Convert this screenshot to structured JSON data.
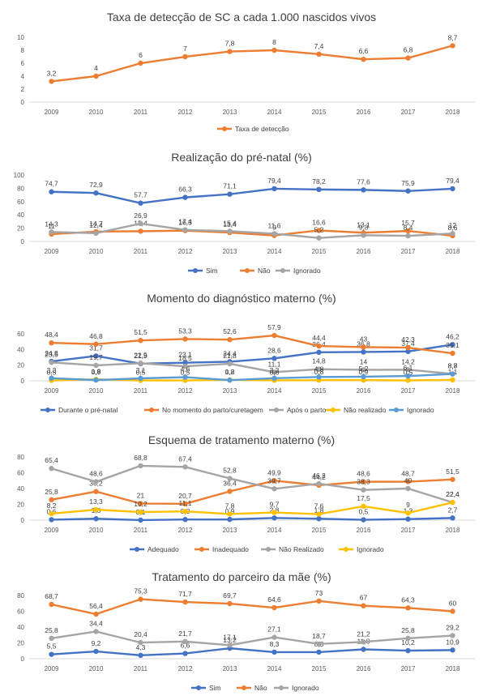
{
  "chart_data": [
    {
      "type": "line",
      "title": "Taxa de detecção de SC a cada 1.000 nascidos vivos",
      "categories": [
        "2009",
        "2010",
        "2011",
        "2012",
        "2013",
        "2014",
        "2015",
        "2016",
        "2017",
        "2018"
      ],
      "ylim": [
        0,
        10
      ],
      "yticks": [
        0,
        2,
        4,
        6,
        8,
        10
      ],
      "grid": false,
      "legend": "bottom",
      "series": [
        {
          "name": "Taxa de detecção",
          "color": "#ED7D31",
          "values": [
            3.2,
            4,
            6,
            7,
            7.8,
            8,
            7.4,
            6.6,
            6.8,
            8.7
          ],
          "labels": [
            "3,2",
            "4",
            "6",
            "7",
            "7,8",
            "8",
            "7,4",
            "6,6",
            "6,8",
            "8,7"
          ]
        }
      ]
    },
    {
      "type": "line",
      "title": "Realização do pré-natal (%)",
      "categories": [
        "2009",
        "2010",
        "2011",
        "2012",
        "2013",
        "2014",
        "2015",
        "2016",
        "2017",
        "2018"
      ],
      "ylim": [
        0,
        100
      ],
      "yticks": [
        0,
        20,
        40,
        60,
        80,
        100
      ],
      "grid": false,
      "legend": "bottom",
      "series": [
        {
          "name": "Sim",
          "color": "#4472C4",
          "values": [
            74.7,
            72.9,
            57.7,
            66.3,
            71.1,
            79.4,
            78.2,
            77.6,
            75.9,
            79.4
          ],
          "labels": [
            "74,7",
            "72,9",
            "57,7",
            "66,3",
            "71,1",
            "79,4",
            "78,2",
            "77,6",
            "75,9",
            "79,4"
          ]
        },
        {
          "name": "Não",
          "color": "#ED7D31",
          "values": [
            11,
            14.7,
            15.4,
            16.3,
            13.4,
            9,
            16.6,
            13.1,
            15.7,
            8.6
          ],
          "labels": [
            "11",
            "14,7",
            "15,4",
            "16,3",
            "13,4",
            "9",
            "16,6",
            "13,1",
            "15,7",
            "8,6"
          ]
        },
        {
          "name": "Ignorado",
          "color": "#A5A5A5",
          "values": [
            14.3,
            12.4,
            26.9,
            17.4,
            15.4,
            11.6,
            5.2,
            9.3,
            8.4,
            12
          ],
          "labels": [
            "14,3",
            "12,4",
            "26,9",
            "17,4",
            "15,4",
            "11,6",
            "5,2",
            "9,3",
            "8,4",
            "12"
          ]
        }
      ]
    },
    {
      "type": "line",
      "title": "Momento do diagnóstico materno (%)",
      "categories": [
        "2009",
        "2010",
        "2011",
        "2012",
        "2013",
        "2014",
        "2015",
        "2016",
        "2017",
        "2018"
      ],
      "ylim": [
        0,
        60
      ],
      "yticks": [
        0,
        20,
        40,
        60
      ],
      "grid": false,
      "legend": "bottom",
      "series": [
        {
          "name": "Durante o pré-natal",
          "color": "#4472C4",
          "values": [
            24.8,
            31.7,
            21.9,
            23.1,
            24.4,
            28.6,
            36.4,
            36.8,
            37.4,
            46.2
          ],
          "labels": [
            "24,8",
            "31,7",
            "21,9",
            "23,1",
            "24,4",
            "28,6",
            "36,4",
            "36,8",
            "37,4",
            "46,2"
          ]
        },
        {
          "name": "No momento do parto/curetagem",
          "color": "#ED7D31",
          "values": [
            48.4,
            46.8,
            51.5,
            53.3,
            52.6,
            57.9,
            44.4,
            43,
            42.3,
            35.1
          ],
          "labels": [
            "48,4",
            "46,8",
            "51,5",
            "53,3",
            "52,6",
            "57,9",
            "44,4",
            "43",
            "42,3",
            "35,1"
          ]
        },
        {
          "name": "Após o parto",
          "color": "#A5A5A5",
          "values": [
            23.5,
            19.7,
            22.5,
            18.5,
            21.8,
            11.1,
            14.8,
            14,
            14.2,
            8.8
          ],
          "labels": [
            "23,5",
            "19,7",
            "22,5",
            "18,5",
            "21,8",
            "11,1",
            "14,8",
            "14",
            "14,2",
            "8,8"
          ]
        },
        {
          "name": "Não realizado",
          "color": "#FFC000",
          "values": [
            0.5,
            1.8,
            0.5,
            0.5,
            1.2,
            0.6,
            0.8,
            0.9,
            0.5,
            1.1
          ],
          "labels": [
            "0,5",
            "1,8",
            "0,5",
            "0,5",
            "1,2",
            "0,6",
            "0,8",
            "0,9",
            "0,5",
            "1,1"
          ]
        },
        {
          "name": "Ignorado",
          "color": "#5B9BD5",
          "values": [
            3.3,
            0.9,
            3.1,
            4.6,
            0.8,
            3.3,
            4.8,
            5.2,
            6.1,
            8.7
          ],
          "labels": [
            "3,3",
            "0,9",
            "3,1",
            "4,6",
            "0,8",
            "3,3",
            "4,8",
            "5,2",
            "6,1",
            "8,7"
          ]
        }
      ]
    },
    {
      "type": "line",
      "title": "Esquema de tratamento materno (%)",
      "categories": [
        "2009",
        "2010",
        "2011",
        "2012",
        "2013",
        "2014",
        "2015",
        "2016",
        "2017",
        "2018"
      ],
      "ylim": [
        0,
        80
      ],
      "yticks": [
        0,
        20,
        40,
        60,
        80
      ],
      "grid": false,
      "legend": "bottom",
      "series": [
        {
          "name": "Adequado",
          "color": "#4472C4",
          "values": [
            0.6,
            1.8,
            0.1,
            0.8,
            0.9,
            2.8,
            1.8,
            0.5,
            1.3,
            2.7
          ],
          "labels": [
            "0,6",
            "1,8",
            "0,1",
            "0,8",
            "0,9",
            "2,8",
            "1,8",
            "0,5",
            "1,3",
            "2,7"
          ]
        },
        {
          "name": "Inadequado",
          "color": "#ED7D31",
          "values": [
            25.8,
            36.2,
            21,
            20.7,
            36.4,
            49.9,
            44.2,
            48.6,
            48.7,
            51.5
          ],
          "labels": [
            "25,8",
            "36,2",
            "21",
            "20,7",
            "36,4",
            "49,9",
            "44,2",
            "48,6",
            "48,7",
            "51,5"
          ]
        },
        {
          "name": "Não Realizado",
          "color": "#A5A5A5",
          "values": [
            65.4,
            48.6,
            68.8,
            67.4,
            52.8,
            39.7,
            46.2,
            38.3,
            40,
            22.4
          ],
          "labels": [
            "65,4",
            "48,6",
            "68,8",
            "67,4",
            "52,8",
            "39,7",
            "46,2",
            "38,3",
            "40",
            "22,4"
          ]
        },
        {
          "name": "Ignorado",
          "color": "#FFC000",
          "values": [
            8.2,
            13.3,
            10.2,
            11.1,
            7.8,
            9.7,
            7.6,
            17.5,
            9,
            22.4
          ],
          "labels": [
            "8,2",
            "13,3",
            "10,2",
            "11,1",
            "7,8",
            "9,7",
            "7,6",
            "17,5",
            "9",
            "22,4"
          ]
        }
      ]
    },
    {
      "type": "line",
      "title": "Tratamento do parceiro da mãe (%)",
      "categories": [
        "2009",
        "2010",
        "2011",
        "2012",
        "2013",
        "2014",
        "2015",
        "2016",
        "2017",
        "2018"
      ],
      "ylim": [
        0,
        80
      ],
      "yticks": [
        0,
        20,
        40,
        60,
        80
      ],
      "grid": false,
      "legend": "bottom",
      "series": [
        {
          "name": "Sim",
          "color": "#4472C4",
          "values": [
            5.5,
            9.2,
            4.3,
            6.6,
            13.2,
            8.3,
            8.3,
            11.8,
            10.2,
            10.9
          ],
          "labels": [
            "5,5",
            "9,2",
            "4,3",
            "6,6",
            "13,2",
            "8,3",
            "8,3",
            "11,8",
            "10,2",
            "10,9"
          ]
        },
        {
          "name": "Não",
          "color": "#ED7D31",
          "values": [
            68.7,
            56.4,
            75.3,
            71.7,
            69.7,
            64.6,
            73,
            67,
            64.3,
            60
          ],
          "labels": [
            "68,7",
            "56,4",
            "75,3",
            "71,7",
            "69,7",
            "64,6",
            "73",
            "67",
            "64,3",
            "60"
          ]
        },
        {
          "name": "Ignorado",
          "color": "#A5A5A5",
          "values": [
            25.8,
            34.4,
            20.4,
            21.7,
            17.1,
            27.1,
            18.7,
            21.2,
            25.8,
            29.2
          ],
          "labels": [
            "25,8",
            "34,4",
            "20,4",
            "21,7",
            "17,1",
            "27,1",
            "18,7",
            "21,2",
            "25,8",
            "29,2"
          ]
        }
      ]
    }
  ]
}
